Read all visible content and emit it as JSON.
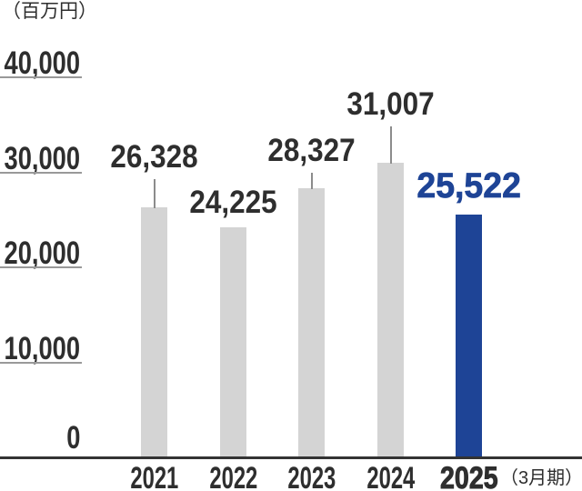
{
  "unit_label": "（百万円）",
  "x_axis_suffix": "（3月期）",
  "chart_data": {
    "type": "bar",
    "title": "",
    "categories": [
      "2021",
      "2022",
      "2023",
      "2024",
      "2025"
    ],
    "values": [
      26328,
      24225,
      28327,
      31007,
      25522
    ],
    "value_labels": [
      "26,328",
      "24,225",
      "28,327",
      "31,007",
      "25,522"
    ],
    "ylabel": "（百万円）",
    "xlabel": "（3月期）",
    "ylim": [
      0,
      40000
    ],
    "yticks": [
      40000,
      30000,
      20000,
      10000,
      0
    ],
    "ytick_labels": [
      "40,000",
      "30,000",
      "20,000",
      "10,000",
      "0"
    ],
    "grid": false,
    "legend": false,
    "highlight_index": 4,
    "colors": {
      "bar": "#d4d4d4",
      "highlight_bar": "#1e4496",
      "text": "#2e2e2e",
      "highlight_text": "#1e4496",
      "tick_line": "#999999",
      "axis_line": "#333333",
      "leader_line": "#8c8c8c"
    }
  }
}
